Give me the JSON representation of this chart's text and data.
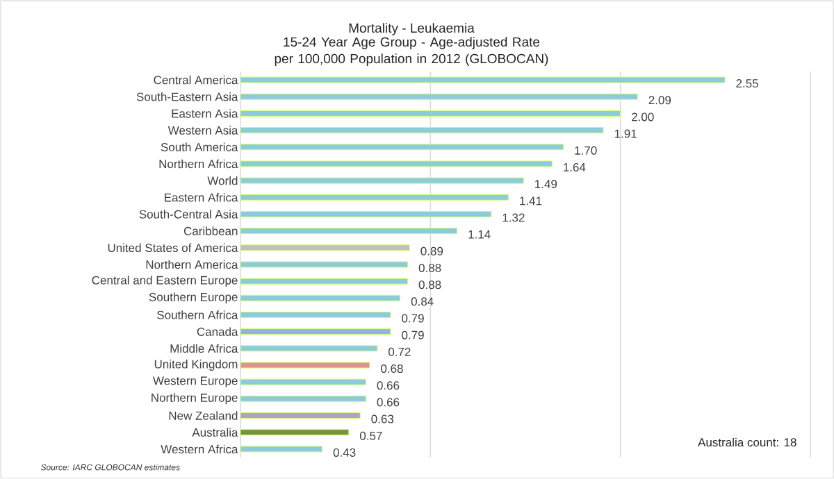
{
  "chart_data": {
    "type": "bar",
    "orientation": "horizontal",
    "title": "Mortality - Leukaemia",
    "subtitle": "15-24 Year Age Group - Age-adjusted Rate per 100,000 Population in 2012 (GLOBOCAN)",
    "categories": [
      "Central America",
      "South-Eastern Asia",
      "Eastern Asia",
      "Western Asia",
      "South America",
      "Northern Africa",
      "World",
      "Eastern Africa",
      "South-Central Asia",
      "Caribbean",
      "United States of America",
      "Northern America",
      "Central and Eastern Europe",
      "Southern Europe",
      "Southern Africa",
      "Canada",
      "Middle Africa",
      "United Kingdom",
      "Western Europe",
      "Northern Europe",
      "New Zealand",
      "Australia",
      "Western Africa"
    ],
    "values": [
      2.55,
      2.09,
      2.0,
      1.91,
      1.7,
      1.64,
      1.49,
      1.41,
      1.32,
      1.14,
      0.89,
      0.88,
      0.88,
      0.84,
      0.79,
      0.79,
      0.72,
      0.68,
      0.66,
      0.66,
      0.63,
      0.57,
      0.43
    ],
    "value_labels": [
      "2.55",
      "2.09",
      "2.00",
      "1.91",
      "1.70",
      "1.64",
      "1.49",
      "1.41",
      "1.32",
      "1.14",
      "0.89",
      "0.88",
      "0.88",
      "0.84",
      "0.79",
      "0.79",
      "0.72",
      "0.68",
      "0.66",
      "0.66",
      "0.63",
      "0.57",
      "0.43"
    ],
    "colors": [
      "#8ccbdc",
      "#8ccbdc",
      "#8ccbdc",
      "#8ccbdc",
      "#8ccbdc",
      "#8ccbdc",
      "#8ccbdc",
      "#8ccbdc",
      "#8ccbdc",
      "#8ccbdc",
      "#bfbfbf",
      "#8ccbdc",
      "#8ccbdc",
      "#8ccbdc",
      "#8ccbdc",
      "#95b3d7",
      "#8ccbdc",
      "#da9694",
      "#8ccbdc",
      "#8ccbdc",
      "#b1a0c7",
      "#76933c",
      "#8ccbdc"
    ],
    "xlim": [
      0,
      3
    ],
    "xticks": [
      {
        "value": 0,
        "label": null
      },
      {
        "value": 1,
        "label": null
      },
      {
        "value": 2,
        "label": null
      },
      {
        "value": 3,
        "label": null
      }
    ],
    "grid": "x",
    "annotations": [
      {
        "text": "Australia count: 18"
      },
      {
        "text": "Source: IARC GLOBOCAN estimates"
      }
    ]
  }
}
